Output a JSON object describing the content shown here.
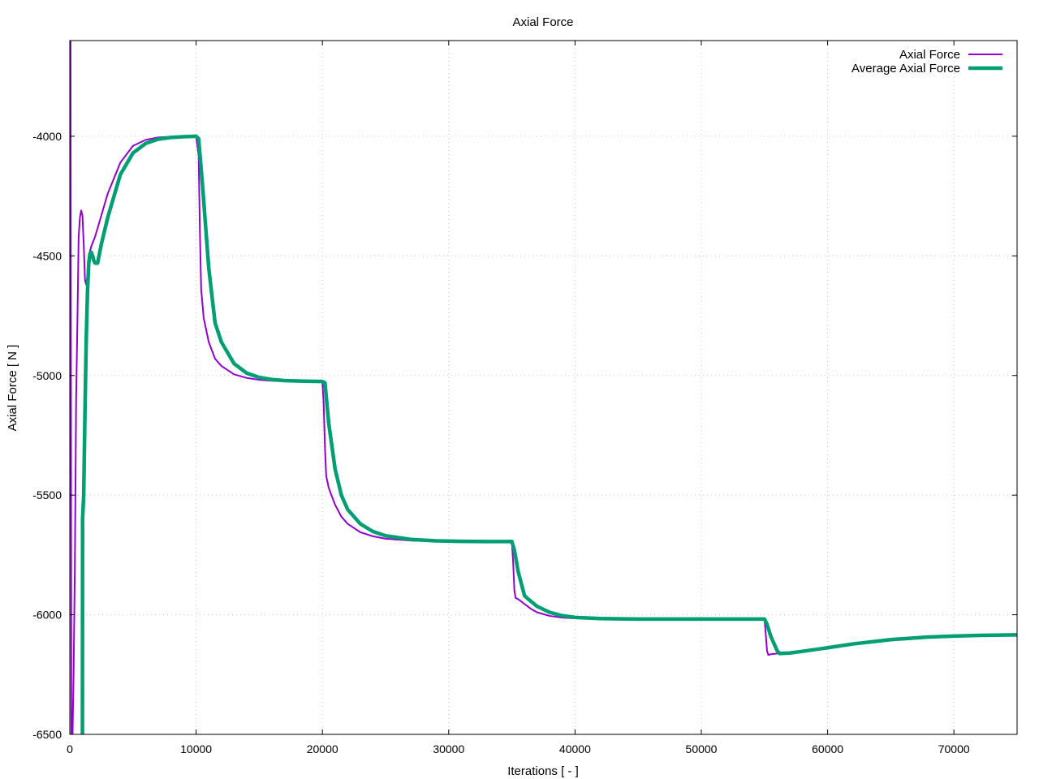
{
  "chart_data": {
    "type": "line",
    "title": "Axial Force",
    "xlabel": "Iterations [ - ]",
    "ylabel": "Axial Force [ N ]",
    "xlim": [
      0,
      75000
    ],
    "ylim": [
      -6500,
      -3600
    ],
    "xticks": [
      0,
      10000,
      20000,
      30000,
      40000,
      50000,
      60000,
      70000
    ],
    "yticks": [
      -6500,
      -6000,
      -5500,
      -5000,
      -4500,
      -4000
    ],
    "grid": true,
    "legend_position": "top-right",
    "series": [
      {
        "name": "Axial Force",
        "color": "#9400d3",
        "x": [
          0,
          60,
          120,
          220,
          300,
          400,
          500,
          600,
          700,
          800,
          900,
          1000,
          1100,
          1200,
          1300,
          1400,
          1500,
          1700,
          2000,
          2500,
          3000,
          4000,
          5000,
          6000,
          7000,
          8000,
          9000,
          10000,
          10200,
          10300,
          10400,
          10600,
          11000,
          11500,
          12000,
          13000,
          14000,
          15000,
          16000,
          17000,
          18000,
          19000,
          20000,
          20100,
          20200,
          20300,
          20500,
          21000,
          21500,
          22000,
          23000,
          24000,
          25000,
          27000,
          29000,
          31000,
          33000,
          35000,
          35100,
          35200,
          35300,
          35500,
          36000,
          36500,
          37000,
          38000,
          39000,
          40000,
          42000,
          45000,
          50000,
          55000,
          55100,
          55200,
          55300,
          55500,
          56000,
          57000,
          58000,
          60000,
          62000,
          65000,
          68000,
          70000,
          72000,
          75000
        ],
        "y": [
          -3600,
          -3600,
          -6500,
          -6500,
          -6240,
          -5800,
          -5100,
          -4780,
          -4420,
          -4340,
          -4310,
          -4330,
          -4450,
          -4600,
          -4620,
          -4580,
          -4500,
          -4460,
          -4420,
          -4330,
          -4240,
          -4110,
          -4040,
          -4015,
          -4005,
          -4002,
          -4000,
          -4000,
          -4080,
          -4400,
          -4640,
          -4760,
          -4860,
          -4930,
          -4960,
          -4995,
          -5010,
          -5018,
          -5022,
          -5024,
          -5025,
          -5025,
          -5025,
          -5120,
          -5300,
          -5420,
          -5470,
          -5540,
          -5590,
          -5620,
          -5655,
          -5672,
          -5682,
          -5690,
          -5693,
          -5694,
          -5694,
          -5694,
          -5780,
          -5900,
          -5930,
          -5935,
          -5955,
          -5975,
          -5990,
          -6005,
          -6012,
          -6015,
          -6017,
          -6018,
          -6018,
          -6018,
          -6080,
          -6150,
          -6168,
          -6165,
          -6162,
          -6158,
          -6150,
          -6135,
          -6120,
          -6103,
          -6092,
          -6088,
          -6085,
          -6083
        ]
      },
      {
        "name": "Average Axial Force",
        "color": "#009e73",
        "x": [
          1000,
          1010,
          1100,
          1200,
          1300,
          1400,
          1500,
          1600,
          1700,
          1800,
          1900,
          2000,
          2200,
          2500,
          3000,
          4000,
          5000,
          6000,
          7000,
          8000,
          9000,
          10000,
          10200,
          10500,
          11000,
          11500,
          12000,
          13000,
          14000,
          15000,
          16000,
          17000,
          18000,
          19000,
          20000,
          20200,
          20500,
          21000,
          21500,
          22000,
          23000,
          24000,
          25000,
          27000,
          29000,
          31000,
          33000,
          35000,
          35200,
          35500,
          36000,
          36300,
          37000,
          38000,
          39000,
          40000,
          42000,
          45000,
          50000,
          55000,
          55200,
          55500,
          56000,
          56200,
          57000,
          58000,
          60000,
          62000,
          65000,
          68000,
          70000,
          72000,
          75000
        ],
        "y": [
          -6500,
          -5600,
          -5500,
          -5150,
          -4850,
          -4650,
          -4530,
          -4490,
          -4485,
          -4500,
          -4520,
          -4530,
          -4530,
          -4450,
          -4340,
          -4160,
          -4070,
          -4030,
          -4012,
          -4005,
          -4002,
          -4000,
          -4010,
          -4200,
          -4550,
          -4780,
          -4860,
          -4950,
          -4990,
          -5008,
          -5017,
          -5021,
          -5023,
          -5024,
          -5025,
          -5030,
          -5200,
          -5390,
          -5500,
          -5560,
          -5620,
          -5652,
          -5670,
          -5685,
          -5691,
          -5693,
          -5694,
          -5694,
          -5730,
          -5820,
          -5920,
          -5935,
          -5965,
          -5990,
          -6004,
          -6011,
          -6016,
          -6018,
          -6018,
          -6018,
          -6040,
          -6090,
          -6150,
          -6162,
          -6160,
          -6153,
          -6138,
          -6122,
          -6104,
          -6093,
          -6089,
          -6086,
          -6084
        ]
      }
    ]
  }
}
